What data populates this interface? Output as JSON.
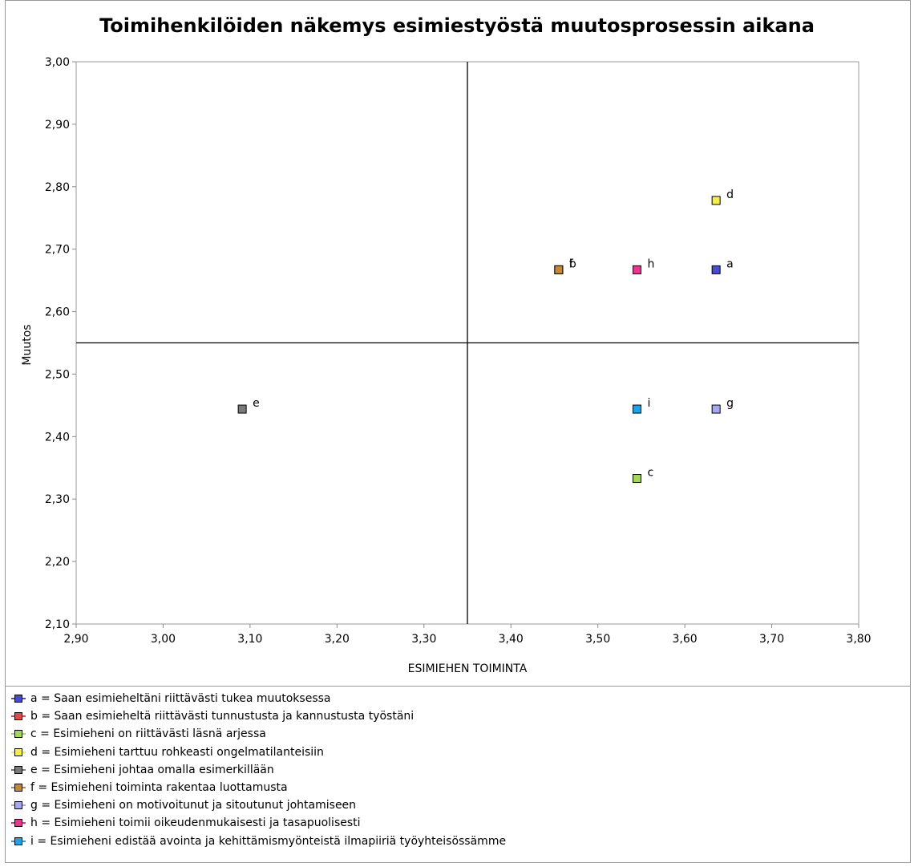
{
  "chart_data": {
    "type": "scatter",
    "title": "Toimihenkilöiden näkemys esimiestyöstä muutosprosessin aikana",
    "xlabel": "ESIMIEHEN TOIMINTA",
    "ylabel": "Muutos",
    "xlim": [
      2.9,
      3.8
    ],
    "ylim": [
      2.1,
      3.0
    ],
    "x_ticks": [
      "2,90",
      "3,00",
      "3,10",
      "3,20",
      "3,30",
      "3,40",
      "3,50",
      "3,60",
      "3,70",
      "3,80"
    ],
    "y_ticks": [
      "2,10",
      "2,20",
      "2,30",
      "2,40",
      "2,50",
      "2,60",
      "2,70",
      "2,80",
      "2,90",
      "3,00"
    ],
    "crosshair": {
      "x": 3.35,
      "y": 2.55
    },
    "grid": false,
    "legend_position": "bottom",
    "series": [
      {
        "name": "a = Saan esimieheltäni riittävästi tukea muutoksessa",
        "label": "a",
        "x": 3.636,
        "y": 2.667,
        "color": "#4b4bd1"
      },
      {
        "name": "b = Saan esimieheltä riittävästi tunnustusta ja kannustusta työstäni",
        "label": "b",
        "x": 3.455,
        "y": 2.667,
        "color": "#e24a4a"
      },
      {
        "name": "c = Esimieheni on riittävästi läsnä arjessa",
        "label": "c",
        "x": 3.545,
        "y": 2.333,
        "color": "#a6d65b"
      },
      {
        "name": "d = Esimieheni tarttuu rohkeasti ongelmatilanteisiin",
        "label": "d",
        "x": 3.636,
        "y": 2.778,
        "color": "#f2ee4a"
      },
      {
        "name": "e = Esimieheni johtaa omalla esimerkillään",
        "label": "e",
        "x": 3.091,
        "y": 2.444,
        "color": "#7a7a7a"
      },
      {
        "name": "f = Esimieheni toiminta rakentaa luottamusta",
        "label": "f",
        "x": 3.455,
        "y": 2.667,
        "color": "#c08a3a"
      },
      {
        "name": "g = Esimieheni on motivoitunut ja sitoutunut johtamiseen",
        "label": "g",
        "x": 3.636,
        "y": 2.444,
        "color": "#a8a8f0"
      },
      {
        "name": "h = Esimieheni toimii oikeudenmukaisesti ja tasapuolisesti",
        "label": "h",
        "x": 3.545,
        "y": 2.667,
        "color": "#e6368f"
      },
      {
        "name": "i = Esimieheni edistää avointa ja kehittämismyönteistä ilmapiiriä työyhteisössämme",
        "label": "i",
        "x": 3.545,
        "y": 2.444,
        "color": "#1ea2e8"
      }
    ]
  }
}
